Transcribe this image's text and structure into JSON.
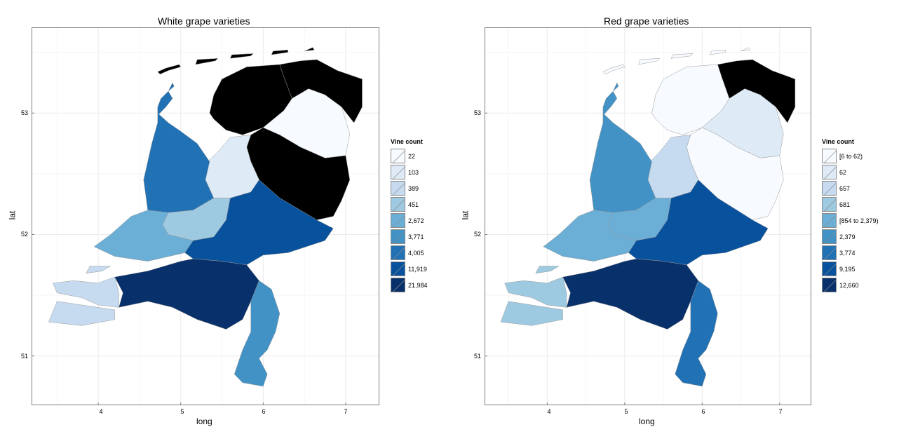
{
  "panels": [
    {
      "title": "White grape varieties",
      "xlabel": "long",
      "ylabel": "lat",
      "legend_title": "Vine count",
      "legend": [
        {
          "label": "22",
          "color": "#f7fbff"
        },
        {
          "label": "103",
          "color": "#deebf7"
        },
        {
          "label": "389",
          "color": "#c6dbef"
        },
        {
          "label": "451",
          "color": "#9ecae1"
        },
        {
          "label": "2,672",
          "color": "#6baed6"
        },
        {
          "label": "3,771",
          "color": "#4292c6"
        },
        {
          "label": "4,005",
          "color": "#2171b5"
        },
        {
          "label": "11,919",
          "color": "#08519c"
        },
        {
          "label": "21,984",
          "color": "#08306b"
        }
      ],
      "provinces": {
        "wadden": "#000000",
        "groningen": "#000000",
        "friesland": "#000000",
        "drenthe": "#f7fbff",
        "overijssel": "#000000",
        "flevoland": "#deebf7",
        "noordholland": "#2171b5",
        "utrecht": "#9ecae1",
        "zuidholland": "#6baed6",
        "gelderland": "#08519c",
        "noordbrabant": "#08306b",
        "limburg": "#4292c6",
        "zeeland": "#c6dbef",
        "texel": "#2171b5"
      }
    },
    {
      "title": "Red grape varieties",
      "xlabel": "long",
      "ylabel": "lat",
      "legend_title": "Vine count",
      "legend": [
        {
          "label": "[6 to 62)",
          "color": "#f7fbff"
        },
        {
          "label": "62",
          "color": "#deebf7"
        },
        {
          "label": "657",
          "color": "#c6dbef"
        },
        {
          "label": "681",
          "color": "#9ecae1"
        },
        {
          "label": "[854 to 2,379)",
          "color": "#6baed6"
        },
        {
          "label": "2,379",
          "color": "#4292c6"
        },
        {
          "label": "3,774",
          "color": "#2171b5"
        },
        {
          "label": "9,195",
          "color": "#08519c"
        },
        {
          "label": "12,660",
          "color": "#08306b"
        }
      ],
      "provinces": {
        "wadden": "#f7fbff",
        "groningen": "#000000",
        "friesland": "#f7fbff",
        "drenthe": "#deebf7",
        "overijssel": "#f7fbff",
        "flevoland": "#c6dbef",
        "noordholland": "#4292c6",
        "utrecht": "#6baed6",
        "zuidholland": "#6baed6",
        "gelderland": "#08519c",
        "noordbrabant": "#08306b",
        "limburg": "#2171b5",
        "zeeland": "#9ecae1",
        "texel": "#4292c6"
      }
    }
  ],
  "axes": {
    "x_ticks": [
      "4",
      "5",
      "6",
      "7"
    ],
    "y_ticks": [
      "53",
      "52",
      "51"
    ],
    "xlim": [
      3.2,
      7.4
    ],
    "ylim": [
      50.6,
      53.7
    ]
  }
}
